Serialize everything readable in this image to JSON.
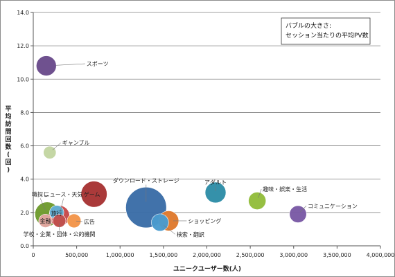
{
  "chart_data": {
    "type": "bubble",
    "legend_note": [
      "バブルの大きさ:",
      "セッション当たりの平均PV数"
    ],
    "xlabel": "ユニークユーザー数(人)",
    "ylabel": "平均訪問回数(回)",
    "xlim": [
      0,
      4000000
    ],
    "ylim": [
      0,
      14
    ],
    "x_ticks": [
      {
        "value": 0,
        "label": "0"
      },
      {
        "value": 500000,
        "label": "500,000"
      },
      {
        "value": 1000000,
        "label": "1,000,000"
      },
      {
        "value": 1500000,
        "label": "1,500,000"
      },
      {
        "value": 2000000,
        "label": "2,000,000"
      },
      {
        "value": 2500000,
        "label": "2,500,000"
      },
      {
        "value": 3000000,
        "label": "3,000,000"
      },
      {
        "value": 3500000,
        "label": "3,500,000"
      },
      {
        "value": 4000000,
        "label": "4,000,000"
      }
    ],
    "y_ticks": [
      {
        "value": 0,
        "label": "0.0"
      },
      {
        "value": 2,
        "label": "2.0"
      },
      {
        "value": 4,
        "label": "4.0"
      },
      {
        "value": 6,
        "label": "6.0"
      },
      {
        "value": 8,
        "label": "8.0"
      },
      {
        "value": 10,
        "label": "10.0"
      },
      {
        "value": 12,
        "label": "12.0"
      },
      {
        "value": 14,
        "label": "14.0"
      }
    ],
    "grid": "horizontal",
    "points": [
      {
        "name": "スポーツ",
        "x": 150000,
        "y": 10.8,
        "size": 9.5,
        "color": "#6b4c8c"
      },
      {
        "name": "ギャンブル",
        "x": 190000,
        "y": 5.6,
        "size": 3.8,
        "color": "#c4d6a3"
      },
      {
        "name": "ダウンロード・ストレージ",
        "x": 1300000,
        "y": 2.3,
        "size": 39.0,
        "color": "#3b6ea8"
      },
      {
        "name": "アダルト",
        "x": 2100000,
        "y": 3.2,
        "size": 10.2,
        "color": "#2f8ea8"
      },
      {
        "name": "趣味・娯楽・生活",
        "x": 2580000,
        "y": 2.7,
        "size": 7.2,
        "color": "#93bd3c"
      },
      {
        "name": "コミュニケーション",
        "x": 3050000,
        "y": 1.9,
        "size": 6.8,
        "color": "#7a5aa6"
      },
      {
        "name": "ゲーム",
        "x": 700000,
        "y": 3.1,
        "size": 16.0,
        "color": "#a83434"
      },
      {
        "name": "職探し",
        "x": 160000,
        "y": 1.9,
        "size": 14.0,
        "color": "#6f9b2e"
      },
      {
        "name": "ニュース・天気",
        "x": 300000,
        "y": 1.8,
        "size": 10.0,
        "color": "#c84b4b"
      },
      {
        "name": "旅行",
        "x": 270000,
        "y": 2.0,
        "size": 4.8,
        "color": "#62b1d6"
      },
      {
        "name": "広告",
        "x": 470000,
        "y": 1.5,
        "size": 4.5,
        "color": "#f3954a"
      },
      {
        "name": "金融",
        "x": 140000,
        "y": 1.5,
        "size": 4.2,
        "color": "#e2a6a0"
      },
      {
        "name": "学校・企業・団体・公的機関",
        "x": 300000,
        "y": 1.5,
        "size": 4.0,
        "color": "#c0504d"
      },
      {
        "name": "ショッピング",
        "x": 1560000,
        "y": 1.5,
        "size": 9.5,
        "color": "#e07a2e"
      },
      {
        "name": "検索・翻訳",
        "x": 1460000,
        "y": 1.4,
        "size": 7.0,
        "color": "#4a9bcf"
      }
    ]
  }
}
